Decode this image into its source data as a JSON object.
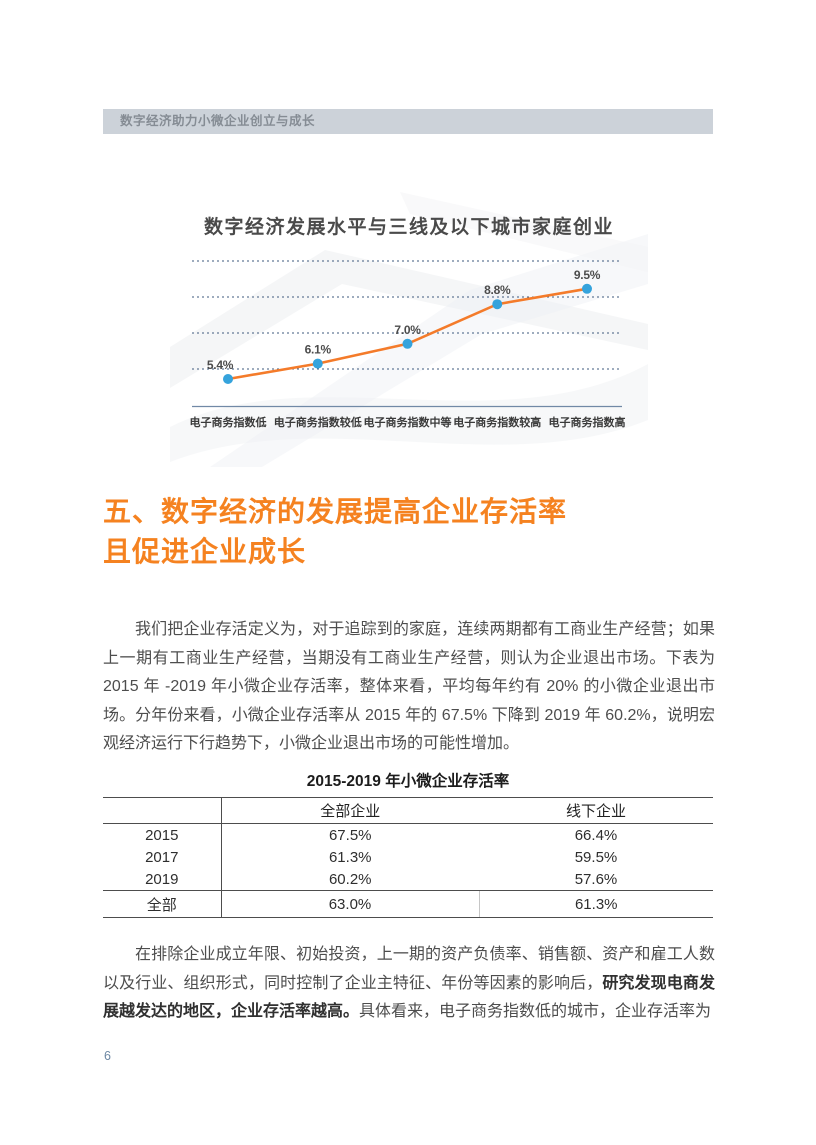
{
  "header": {
    "title": "数字经济助力小微企业创立与成长"
  },
  "chart_data": {
    "type": "line",
    "title": "数字经济发展水平与三线及以下城市家庭创业",
    "categories": [
      "电子商务指数低",
      "电子商务指数较低",
      "电子商务指数中等",
      "电子商务指数较高",
      "电子商务指数高"
    ],
    "values": [
      5.4,
      6.1,
      7.0,
      8.8,
      9.5
    ],
    "point_labels": [
      "5.4%",
      "6.1%",
      "7.0%",
      "8.8%",
      "9.5%"
    ],
    "xlabel": "",
    "ylabel": "",
    "ylim": [
      4.8,
      10.2
    ],
    "grid": "horizontal-dashed",
    "legend_position": "none",
    "colors": {
      "line": "#f47b2a",
      "marker": "#35a3dc",
      "gridline": "#3e5a7e",
      "axis": "#7189a6",
      "point_label": "#4c4c4c"
    }
  },
  "section_heading": {
    "line1": "五、数字经济的发展提高企业存活率",
    "line2": "且促进企业成长",
    "color": "#f58220"
  },
  "paragraphs": {
    "p1": "我们把企业存活定义为，对于追踪到的家庭，连续两期都有工商业生产经营；如果上一期有工商业生产经营，当期没有工商业生产经营，则认为企业退出市场。下表为 2015 年 -2019 年小微企业存活率，整体来看，平均每年约有 20% 的小微企业退出市场。分年份来看，小微企业存活率从 2015 年的 67.5% 下降到 2019 年 60.2%，说明宏观经济运行下行趋势下，小微企业退出市场的可能性增加。",
    "p2_pre": "在排除企业成立年限、初始投资，上一期的资产负债率、销售额、资产和雇工人数以及行业、组织形式，同时控制了企业主特征、年份等因素的影响后，",
    "p2_bold": "研究发现电商发展越发达的地区，企业存活率越高。",
    "p2_post": "具体看来，电子商务指数低的城市，企业存活率为"
  },
  "table": {
    "title": "2015-2019 年小微企业存活率",
    "columns": [
      "",
      "全部企业",
      "线下企业"
    ],
    "rows": [
      [
        "2015",
        "67.5%",
        "66.4%"
      ],
      [
        "2017",
        "61.3%",
        "59.5%"
      ],
      [
        "2019",
        "60.2%",
        "57.6%"
      ],
      [
        "全部",
        "63.0%",
        "61.3%"
      ]
    ]
  },
  "page_number": "6"
}
